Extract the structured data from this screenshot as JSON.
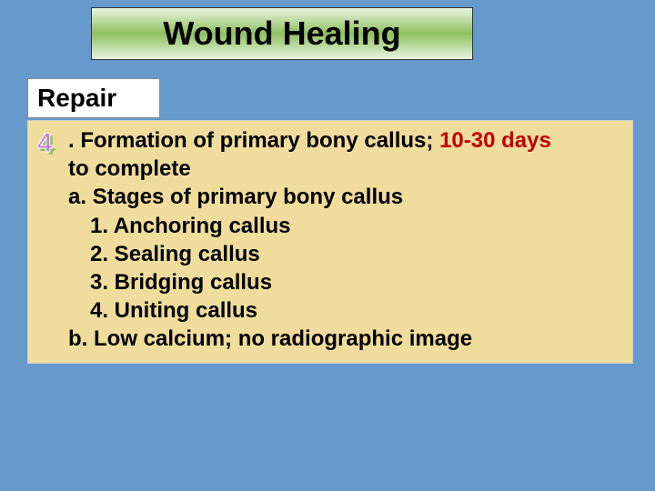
{
  "colors": {
    "page_bg": "#6699cc",
    "title_gradient_top": "#e8f5e0",
    "title_gradient_mid": "#8fc060",
    "content_bg": "#f0dc9c",
    "highlight": "#c00000",
    "text": "#000000",
    "bullet_front": "#c080d0",
    "bullet_shadow": "#8fc060"
  },
  "title": "Wound  Healing",
  "subtitle": "Repair",
  "bullet_number": "4",
  "content": {
    "line1_prefix": ". Formation of primary bony callus; ",
    "line1_highlight": "10-30 days",
    "line2": "to complete",
    "line_a": "a. Stages of primary bony callus",
    "items": [
      "1. Anchoring callus",
      "2. Sealing callus",
      "3. Bridging callus",
      "4. Uniting callus"
    ],
    "line_b": "b. Low calcium; no radiographic image"
  },
  "typography": {
    "title_fontsize": 36,
    "subtitle_fontsize": 28,
    "content_fontsize": 24
  }
}
